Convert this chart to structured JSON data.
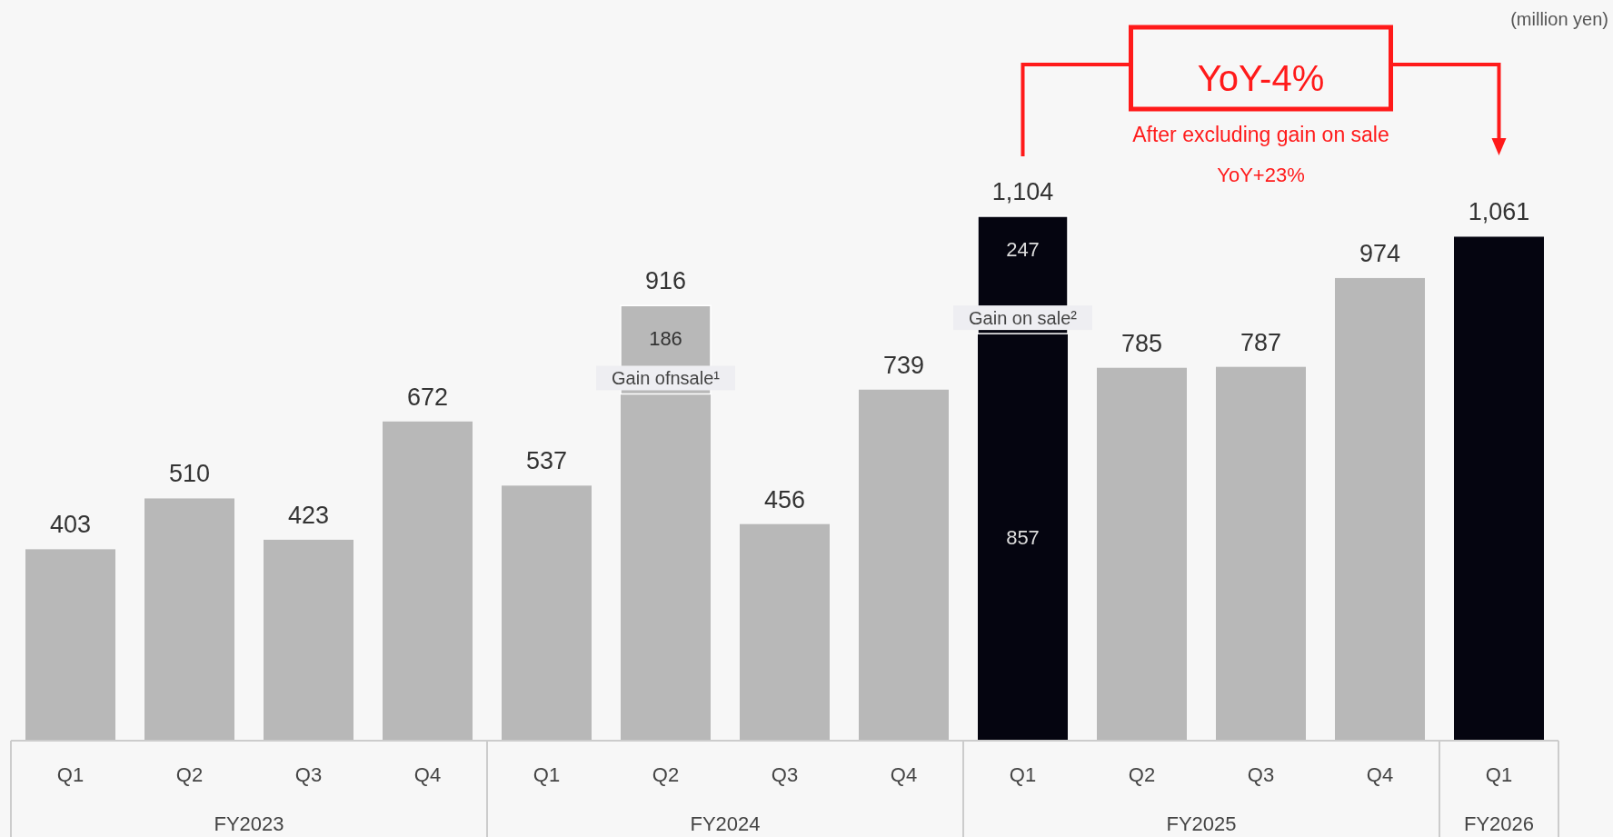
{
  "chart_data": {
    "type": "bar",
    "stacked": true,
    "categories": [
      "Q1",
      "Q2",
      "Q3",
      "Q4",
      "Q1",
      "Q2",
      "Q3",
      "Q4",
      "Q1",
      "Q2",
      "Q3",
      "Q4",
      "Q1"
    ],
    "series": [
      {
        "values": [
          403,
          510,
          423,
          672,
          537,
          730,
          456,
          739,
          857,
          785,
          787,
          974,
          1061
        ],
        "colors": [
          "#b8b8b8",
          "#b8b8b8",
          "#b8b8b8",
          "#b8b8b8",
          "#b8b8b8",
          "#b8b8b8",
          "#b8b8b8",
          "#b8b8b8",
          "#050510",
          "#b8b8b8",
          "#b8b8b8",
          "#b8b8b8",
          "#050510"
        ],
        "value_labels": [
          null,
          null,
          null,
          null,
          null,
          null,
          null,
          null,
          "857",
          null,
          null,
          null,
          null
        ]
      },
      {
        "values": [
          null,
          null,
          null,
          null,
          null,
          186,
          null,
          null,
          247,
          null,
          null,
          null,
          null
        ],
        "colors": [
          null,
          null,
          null,
          null,
          null,
          "#b8b8b8",
          null,
          null,
          "#050510",
          null,
          null,
          null,
          null
        ],
        "value_labels": [
          null,
          null,
          null,
          null,
          null,
          "186",
          null,
          null,
          "247",
          null,
          null,
          null,
          null
        ]
      }
    ],
    "totals": [
      "403",
      "510",
      "423",
      "672",
      "537",
      "916",
      "456",
      "739",
      "1,104",
      "785",
      "787",
      "974",
      "1,061"
    ],
    "annotations": [
      "(million yen)",
      "FY2023",
      "FY2024",
      "FY2025",
      "FY2026",
      "Gain ofnsale¹",
      "Gain on sale²",
      "YoY-4%",
      "After excluding gain on sale",
      "YoY+23%"
    ],
    "tick_labels": "x"
  }
}
